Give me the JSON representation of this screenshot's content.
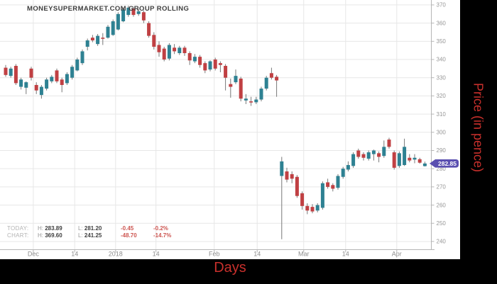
{
  "title": "MONEYSUPERMARKET.COM GROUP ROLLING",
  "axes": {
    "x_title": "Days",
    "y_title": "Price (in pence)"
  },
  "last_price_badge": {
    "value": "282.85"
  },
  "stats": {
    "today": {
      "label": "TODAY:",
      "h_label": "H:",
      "high": "283.89",
      "l_label": "L:",
      "low": "281.20",
      "change": "-0.45",
      "change_pct": "-0.2%"
    },
    "chart": {
      "label": "CHART:",
      "h_label": "H:",
      "high": "369.60",
      "l_label": "L:",
      "low": "241.25",
      "change": "-48.70",
      "change_pct": "-14.7%"
    }
  },
  "colors": {
    "up": "#2e8192",
    "down": "#c04043",
    "wick": "#787878",
    "badge": "#5a4fb0",
    "axis_title": "#c9302c",
    "negative": "#cd5550",
    "grid": "#e7e7e7",
    "axis_line": "#b5b5b5",
    "tick_text": "#979797"
  },
  "chart_data": {
    "type": "candlestick",
    "title": "MONEYSUPERMARKET.COM GROUP ROLLING",
    "xlabel": "Days",
    "ylabel": "Price (in pence)",
    "legend": "none",
    "grid": true,
    "last_price": 282.85,
    "today_high": 283.89,
    "today_low": 281.2,
    "today_change": -0.45,
    "today_change_pct": "-0.2%",
    "chart_high": 369.6,
    "chart_low": 241.25,
    "chart_change": -48.7,
    "chart_change_pct": "-14.7%",
    "view_ylim": [
      235.7,
      372.7
    ],
    "y_ticks": [
      240,
      250,
      260,
      270,
      280,
      290,
      300,
      310,
      320,
      330,
      340,
      350,
      360,
      370
    ],
    "x_ticks": [
      {
        "label": "Dec",
        "index": 5.4
      },
      {
        "label": "14",
        "index": 13.5
      },
      {
        "label": "2018",
        "index": 21.5
      },
      {
        "label": "14",
        "index": 29.4
      },
      {
        "label": "Feb",
        "index": 40.8
      },
      {
        "label": "14",
        "index": 49.2
      },
      {
        "label": "Mar",
        "index": 58.3
      },
      {
        "label": "14",
        "index": 66.5
      },
      {
        "label": "Apr",
        "index": 76.5
      }
    ],
    "candles_format": [
      "open",
      "high",
      "low",
      "close"
    ],
    "candles": [
      [
        335.5,
        337,
        330.5,
        331.5
      ],
      [
        331,
        336,
        330,
        335
      ],
      [
        336.5,
        337.5,
        326,
        327
      ],
      [
        325,
        330,
        323.5,
        329
      ],
      [
        324.5,
        328,
        321,
        327.5
      ],
      [
        335,
        336,
        328.5,
        330
      ],
      [
        326,
        327.5,
        321,
        323
      ],
      [
        320.5,
        326,
        318.5,
        325
      ],
      [
        324,
        330,
        323,
        329
      ],
      [
        328,
        331.5,
        327,
        330.5
      ],
      [
        334,
        335,
        327,
        328
      ],
      [
        329,
        330,
        322,
        326
      ],
      [
        327,
        333,
        326,
        332
      ],
      [
        330,
        337,
        329,
        336
      ],
      [
        334,
        341,
        333.5,
        340
      ],
      [
        338,
        345.5,
        337,
        344.5
      ],
      [
        347,
        351.5,
        345,
        350.5
      ],
      [
        352,
        353.5,
        349.5,
        350.5
      ],
      [
        348.5,
        354,
        347.5,
        353
      ],
      [
        352,
        354.5,
        348,
        351.5
      ],
      [
        352,
        359,
        351.5,
        358
      ],
      [
        353.5,
        362,
        353,
        361
      ],
      [
        356.5,
        366,
        356,
        365
      ],
      [
        361,
        368.5,
        360.5,
        367.5
      ],
      [
        364.5,
        369.6,
        363.5,
        368.5
      ],
      [
        368,
        369,
        363.5,
        364.5
      ],
      [
        365,
        368,
        364,
        366.5
      ],
      [
        366,
        367,
        360,
        361.5
      ],
      [
        360,
        361,
        352,
        353
      ],
      [
        353.5,
        355,
        345.5,
        347
      ],
      [
        348,
        350,
        341.5,
        344
      ],
      [
        346,
        347,
        339,
        340
      ],
      [
        340.5,
        349,
        339.5,
        348
      ],
      [
        346.5,
        348.5,
        343,
        344.5
      ],
      [
        343.5,
        347.5,
        342.5,
        346.5
      ],
      [
        346.5,
        347.5,
        342,
        343.5
      ],
      [
        343.5,
        344.5,
        337,
        339.5
      ],
      [
        339,
        343,
        338,
        341.5
      ],
      [
        341.5,
        342.5,
        335.5,
        337
      ],
      [
        338,
        339,
        332.5,
        334
      ],
      [
        334.5,
        339.5,
        333.5,
        339
      ],
      [
        340,
        341,
        334,
        335
      ],
      [
        338,
        339,
        333,
        337
      ],
      [
        336.5,
        337.5,
        323,
        330
      ],
      [
        326.5,
        329.5,
        319,
        325
      ],
      [
        327.5,
        334.5,
        326.5,
        331
      ],
      [
        329.5,
        330.5,
        317,
        318.5
      ],
      [
        317.5,
        321,
        315.5,
        318.5
      ],
      [
        317,
        319.5,
        314.5,
        316.5
      ],
      [
        316.5,
        319.5,
        315.5,
        318
      ],
      [
        318,
        325,
        317,
        324
      ],
      [
        324,
        331,
        323,
        330
      ],
      [
        332.5,
        335.5,
        329,
        330
      ],
      [
        330.5,
        331.5,
        319.5,
        328.5
      ],
      [
        276,
        286.5,
        241.25,
        284
      ],
      [
        278.5,
        280.5,
        272.5,
        274
      ],
      [
        277,
        278.5,
        272,
        274.5
      ],
      [
        275.5,
        276.5,
        264,
        265
      ],
      [
        266.5,
        267.5,
        257.5,
        259.5
      ],
      [
        259.5,
        261,
        255,
        257
      ],
      [
        259,
        260.5,
        255.5,
        256.5
      ],
      [
        257,
        261,
        256,
        260
      ],
      [
        258.5,
        273,
        257.5,
        272
      ],
      [
        272.5,
        274.5,
        269,
        270
      ],
      [
        271,
        272,
        267.5,
        269
      ],
      [
        269.5,
        277,
        268.5,
        276
      ],
      [
        275.5,
        281,
        274.5,
        280
      ],
      [
        279.5,
        284,
        278.5,
        282
      ],
      [
        281.5,
        289,
        280.5,
        288
      ],
      [
        290,
        291,
        285.5,
        286.5
      ],
      [
        288,
        289,
        284.5,
        286
      ],
      [
        285.5,
        290,
        284.5,
        289
      ],
      [
        288,
        290.5,
        284.5,
        290
      ],
      [
        288.5,
        289.5,
        283.5,
        286.5
      ],
      [
        287,
        295.5,
        286,
        292
      ],
      [
        296,
        297,
        291,
        292
      ],
      [
        289,
        290,
        279.5,
        280.5
      ],
      [
        281.5,
        289.5,
        280.5,
        288.5
      ],
      [
        282,
        296.5,
        281.5,
        292
      ],
      [
        286,
        288,
        283.5,
        284.5
      ],
      [
        285,
        288,
        283,
        286
      ],
      [
        285.2,
        286,
        282.8,
        283.3
      ],
      [
        281.4,
        283.89,
        281.2,
        282.85
      ]
    ]
  }
}
